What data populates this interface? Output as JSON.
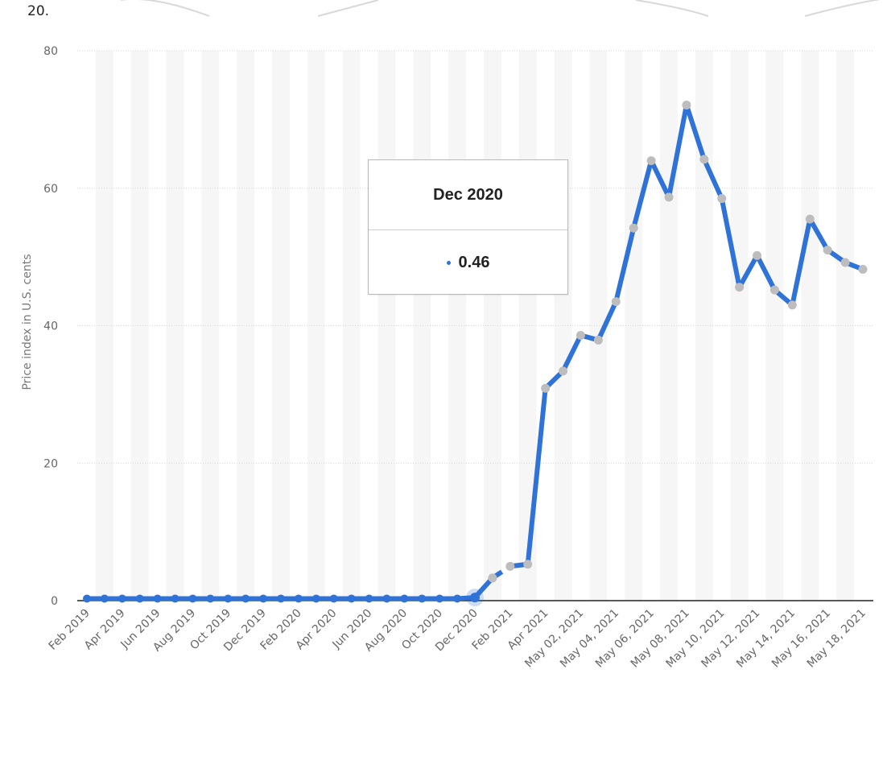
{
  "page": {
    "corner_label": "20."
  },
  "tooltip": {
    "title": "Dec 2020",
    "value": "0.46"
  },
  "colors": {
    "line": "#2f72d8",
    "marker": "#bdbdbd",
    "stripe": "#f6f6f6",
    "grid": "#d6d6d6",
    "baseline": "#222222"
  },
  "chart_data": {
    "type": "line",
    "title": "",
    "xlabel": "",
    "ylabel": "Price index in U.S. cents",
    "ylim": [
      0,
      80
    ],
    "yticks": [
      0,
      20,
      40,
      60,
      80
    ],
    "grid": true,
    "x": [
      "Feb 2019",
      "Mar 2019",
      "Apr 2019",
      "May 2019",
      "Jun 2019",
      "Jul 2019",
      "Aug 2019",
      "Sep 2019",
      "Oct 2019",
      "Nov 2019",
      "Dec 2019",
      "Jan 2020",
      "Feb 2020",
      "Mar 2020",
      "Apr 2020",
      "May 2020",
      "Jun 2020",
      "Jul 2020",
      "Aug 2020",
      "Sep 2020",
      "Oct 2020",
      "Nov 2020",
      "Dec 2020",
      "Jan 2021",
      "Feb 2021",
      "Mar 2021",
      "Apr 2021",
      "May 01, 2021",
      "May 02, 2021",
      "May 03, 2021",
      "May 04, 2021",
      "May 05, 2021",
      "May 06, 2021",
      "May 07, 2021",
      "May 08, 2021",
      "May 09, 2021",
      "May 10, 2021",
      "May 11, 2021",
      "May 12, 2021",
      "May 13, 2021",
      "May 14, 2021",
      "May 15, 2021",
      "May 16, 2021",
      "May 17, 2021",
      "May 18, 2021"
    ],
    "tick_labels": [
      "Feb 2019",
      "Apr 2019",
      "Jun 2019",
      "Aug 2019",
      "Oct 2019",
      "Dec 2019",
      "Feb 2020",
      "Apr 2020",
      "Jun 2020",
      "Aug 2020",
      "Oct 2020",
      "Dec 2020",
      "Feb 2021",
      "Apr 2021",
      "May 02, 2021",
      "May 04, 2021",
      "May 06, 2021",
      "May 08, 2021",
      "May 10, 2021",
      "May 12, 2021",
      "May 14, 2021",
      "May 16, 2021",
      "May 18, 2021"
    ],
    "series": [
      {
        "values": [
          0.3,
          0.3,
          0.3,
          0.3,
          0.3,
          0.3,
          0.3,
          0.3,
          0.3,
          0.3,
          0.3,
          0.3,
          0.3,
          0.3,
          0.3,
          0.3,
          0.3,
          0.3,
          0.3,
          0.3,
          0.3,
          0.3,
          0.46,
          3.3,
          5.0,
          5.3,
          30.9,
          33.4,
          38.6,
          37.9,
          43.5,
          54.2,
          64.0,
          58.7,
          72.1,
          64.2,
          58.5,
          45.6,
          50.2,
          45.2,
          43.0,
          55.5,
          51.0,
          49.2,
          48.2
        ],
        "dashed_segments": [
          [
            23,
            24
          ]
        ],
        "highlighted_index": 22
      }
    ]
  }
}
